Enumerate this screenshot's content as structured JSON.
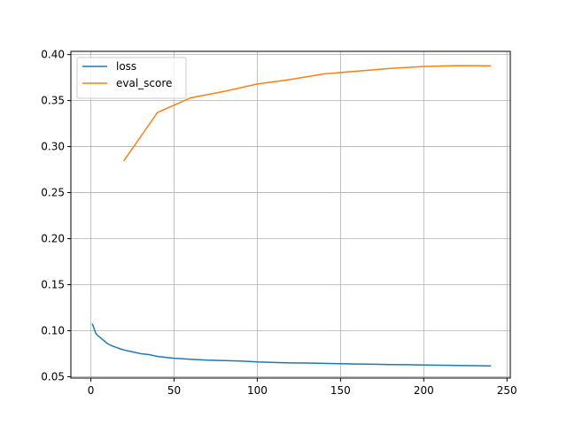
{
  "chart_data": {
    "type": "line",
    "title": "",
    "xlabel": "",
    "ylabel": "",
    "xlim": [
      -12,
      252
    ],
    "ylim": [
      0.0485,
      0.4035
    ],
    "xticks": [
      0,
      50,
      100,
      150,
      200,
      250
    ],
    "yticks": [
      0.05,
      0.1,
      0.15,
      0.2,
      0.25,
      0.3,
      0.35,
      0.4
    ],
    "grid": true,
    "legend": {
      "position": "top-left",
      "entries": [
        "loss",
        "eval_score"
      ]
    },
    "series": [
      {
        "name": "loss",
        "color": "#1f77b4",
        "x": [
          1,
          2,
          3,
          4,
          6,
          8,
          10,
          12,
          15,
          18,
          20,
          25,
          30,
          35,
          40,
          50,
          60,
          70,
          80,
          90,
          100,
          110,
          120,
          130,
          140,
          150,
          160,
          170,
          180,
          190,
          200,
          210,
          220,
          230,
          240
        ],
        "y": [
          0.107,
          0.102,
          0.097,
          0.095,
          0.092,
          0.089,
          0.086,
          0.084,
          0.082,
          0.08,
          0.079,
          0.077,
          0.075,
          0.074,
          0.072,
          0.07,
          0.069,
          0.068,
          0.0675,
          0.067,
          0.066,
          0.0655,
          0.065,
          0.0648,
          0.0645,
          0.0641,
          0.0638,
          0.0635,
          0.0632,
          0.063,
          0.0627,
          0.0625,
          0.0622,
          0.062,
          0.0618
        ]
      },
      {
        "name": "eval_score",
        "color": "#ff7f0e",
        "x": [
          20,
          40,
          60,
          80,
          100,
          120,
          140,
          160,
          180,
          200,
          220,
          240
        ],
        "y": [
          0.285,
          0.337,
          0.353,
          0.36,
          0.368,
          0.373,
          0.379,
          0.382,
          0.385,
          0.387,
          0.388,
          0.3878
        ]
      }
    ]
  }
}
